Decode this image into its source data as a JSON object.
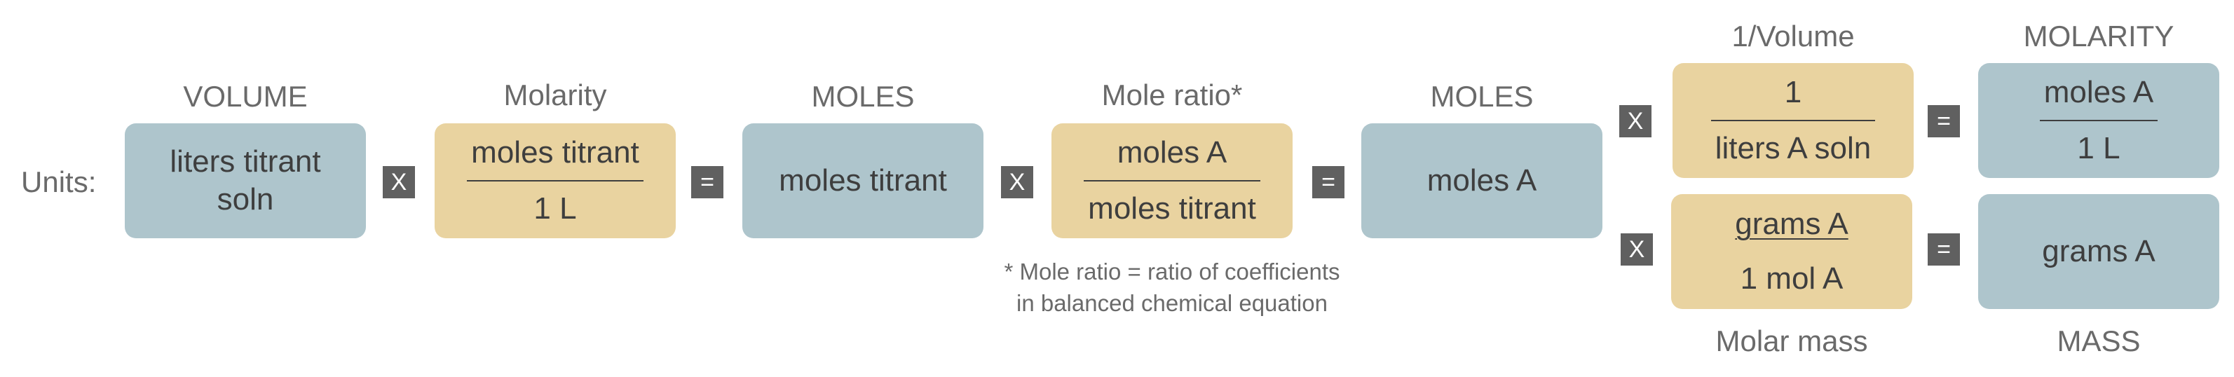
{
  "units_label": "Units:",
  "headers": {
    "volume": "VOLUME",
    "molarity": "Molarity",
    "moles1": "MOLES",
    "mole_ratio": "Mole ratio*",
    "moles2": "MOLES",
    "one_over_volume": "1/Volume",
    "molarity_result": "MOLARITY"
  },
  "footers": {
    "molar_mass": "Molar mass",
    "mass": "MASS"
  },
  "boxes": {
    "volume": "liters titrant soln",
    "molarity": {
      "num": "moles titrant",
      "den": "1 L"
    },
    "moles_titrant": "moles titrant",
    "mole_ratio": {
      "num": "moles A",
      "den": "moles titrant"
    },
    "moles_a": "moles A",
    "inv_volume": {
      "num": "1",
      "den": "liters A soln"
    },
    "molarity_result": {
      "num": "moles A",
      "den": "1 L"
    },
    "molar_mass": {
      "num": "grams A",
      "den": "1 mol A"
    },
    "mass_result": "grams A"
  },
  "operators": {
    "times": "X",
    "equals": "="
  },
  "footnote": {
    "line1": "* Mole ratio = ratio of coefficients",
    "line2": "in balanced chemical equation"
  }
}
